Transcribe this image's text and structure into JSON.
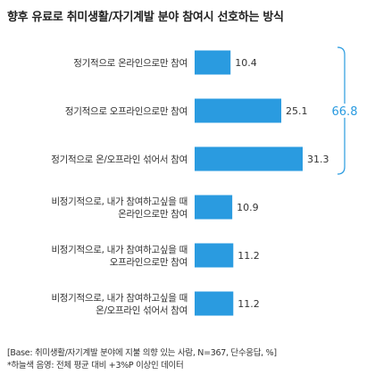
{
  "title": "향후 유료로 취미생활/자기계발 분야 참여시 선호하는 방식",
  "chart_data": {
    "type": "bar",
    "orientation": "horizontal",
    "categories": [
      [
        "정기적으로 온라인으로만 참여"
      ],
      [
        "정기적으로 오프라인으로만 참여"
      ],
      [
        "정기적으로 온/오프라인 섞어서 참여"
      ],
      [
        "비정기적으로, 내가 참여하고싶을 때",
        "온라인으로만 참여"
      ],
      [
        "비정기적으로, 내가 참여하고싶을 때",
        "오프라인으로만 참여"
      ],
      [
        "비정기적으로, 내가 참여하고싶을 때",
        "온/오프라인 섞어서 참여"
      ]
    ],
    "values": [
      10.4,
      25.1,
      31.3,
      10.9,
      11.2,
      11.2
    ],
    "value_labels": [
      "10.4",
      "25.1",
      "31.3",
      "10.9",
      "11.2",
      "11.2"
    ],
    "xlim": [
      0,
      31.3
    ],
    "bar_color": "#2a9be0",
    "bracket": {
      "from_index": 0,
      "to_index": 2,
      "label": "66.8",
      "color": "#2a9be0"
    },
    "grid": false,
    "legend": "none"
  },
  "footnotes": [
    "[Base: 취미생활/자기계발 분야에 지불 의향 있는 사람, N=367, 단수응답, %]",
    "*하늘색 음영: 전체 평균 대비 +3%P 이상인 데이터"
  ]
}
